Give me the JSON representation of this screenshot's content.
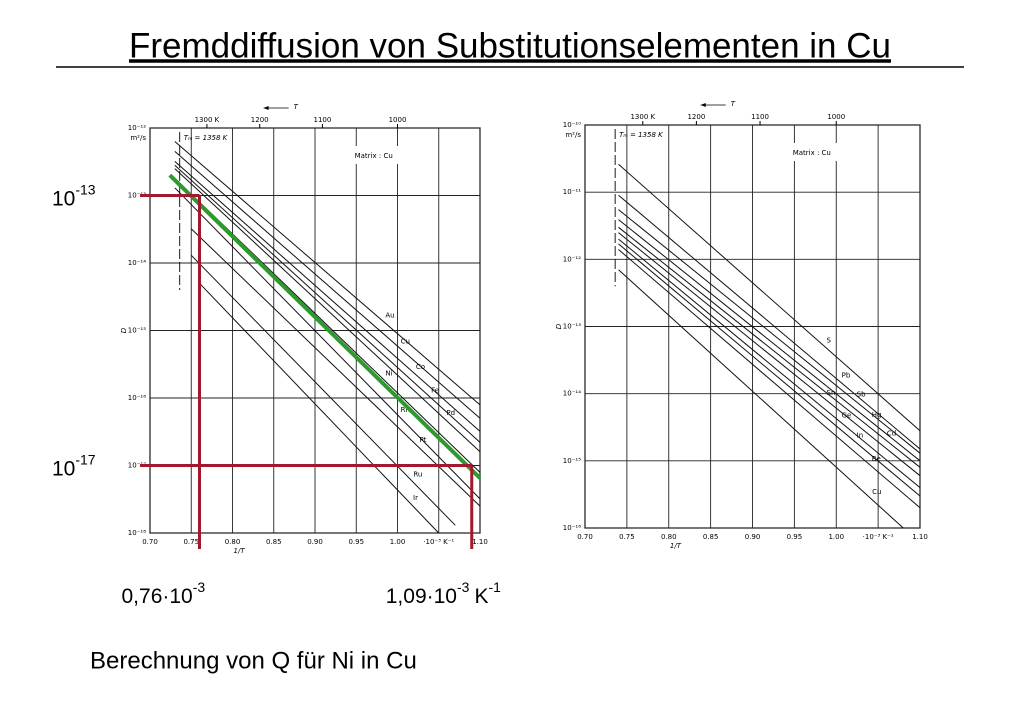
{
  "slide": {
    "title": "Fremddiffusion von Substitutionselementen in Cu",
    "caption": "Berechnung von Q für Ni in Cu"
  },
  "chart_data": [
    {
      "type": "line",
      "yscale": "log",
      "grid": true,
      "annotation": "Matrix : Cu",
      "xlabel": "1/T",
      "ylabel": "D",
      "yunit": "m²/s",
      "xlim": [
        0.7,
        1.1
      ],
      "xticks": [
        {
          "value": 0.7,
          "label": "0.70"
        },
        0.75,
        {
          "value": 0.8,
          "label": "0.80"
        },
        0.85,
        {
          "value": 0.9,
          "label": "0.90"
        },
        0.95,
        {
          "value": 1.0,
          "label": "1.00"
        },
        {
          "value": 1.05,
          "label": "·10⁻³ K⁻¹"
        },
        {
          "value": 1.1,
          "label": "1.10"
        }
      ],
      "ylim": [
        1e-18,
        1e-12
      ],
      "yticks": [
        {
          "value": 1e-12,
          "label": "10⁻¹²"
        },
        {
          "value": 1e-13,
          "label": "10⁻¹³"
        },
        {
          "value": 1e-14,
          "label": "10⁻¹⁴"
        },
        {
          "value": 1e-15,
          "label": "10⁻¹⁵"
        },
        {
          "value": 1e-16,
          "label": "10⁻¹⁶"
        },
        {
          "value": 1e-17,
          "label": "10⁻¹⁷"
        },
        {
          "value": 1e-18,
          "label": "10⁻¹⁸"
        }
      ],
      "top_axis": {
        "label": "T",
        "ticks": [
          {
            "value": 0.769,
            "label": "1300 K"
          },
          {
            "value": 0.833,
            "label": "1200"
          },
          {
            "value": 0.909,
            "label": "1100"
          },
          {
            "value": 1.0,
            "label": "1000"
          }
        ]
      },
      "tm": {
        "x": 0.736,
        "label": "Tₘ = 1358 K"
      },
      "series": [
        {
          "name": "Au",
          "color": "#111111",
          "x": [
            0.73,
            1.1
          ],
          "values": [
            6.3e-13,
            7.9e-17
          ]
        },
        {
          "name": "Cu",
          "color": "#111111",
          "x": [
            0.73,
            1.1
          ],
          "values": [
            4.5e-13,
            5e-17
          ]
        },
        {
          "name": "Co",
          "color": "#111111",
          "x": [
            0.73,
            1.1
          ],
          "values": [
            3.2e-13,
            3.2e-17
          ]
        },
        {
          "name": "Fe",
          "color": "#111111",
          "x": [
            0.73,
            1.1
          ],
          "values": [
            2.8e-13,
            2.2e-17
          ]
        },
        {
          "name": "Pd",
          "color": "#111111",
          "x": [
            0.73,
            1.1
          ],
          "values": [
            2.5e-13,
            1.6e-17
          ]
        },
        {
          "name": "Ni",
          "color": "#111111",
          "x": [
            0.73,
            1.1
          ],
          "values": [
            1.8e-13,
            7.9e-18
          ]
        },
        {
          "name": "Rh",
          "color": "#111111",
          "x": [
            0.73,
            1.1
          ],
          "values": [
            1.3e-13,
            3.2e-18
          ]
        },
        {
          "name": "Pt",
          "color": "#111111",
          "x": [
            0.75,
            1.1
          ],
          "values": [
            3.2e-14,
            2.5e-18
          ]
        },
        {
          "name": "Ru",
          "color": "#111111",
          "x": [
            0.75,
            1.07
          ],
          "values": [
            1.3e-14,
            1.3e-18
          ]
        },
        {
          "name": "Ir",
          "color": "#111111",
          "x": [
            0.76,
            1.05
          ],
          "values": [
            5e-15,
            1e-18
          ]
        }
      ],
      "fit_line": {
        "color": "#2e9a2e",
        "x": [
          0.724,
          1.1
        ],
        "values": [
          2e-13,
          6.5e-18
        ]
      },
      "marker_color": "#a3182f",
      "markers": [
        {
          "x": 0.76,
          "y": 1e-13,
          "y_label": {
            "text": "10",
            "exp": "-13"
          },
          "x_label": {
            "text": "0,76·10",
            "exp": "-3"
          }
        },
        {
          "x": 1.09,
          "y": 1e-17,
          "y_label": {
            "text": "10",
            "exp": "-17"
          },
          "x_label": {
            "text": "1,09·10",
            "exp": "-3",
            "unit": "K",
            "unit_exp": "-1"
          }
        }
      ]
    },
    {
      "type": "line",
      "yscale": "log",
      "grid": true,
      "annotation": "Matrix : Cu",
      "xlabel": "1/T",
      "ylabel": "D",
      "yunit": "m²/s",
      "xlim": [
        0.7,
        1.1
      ],
      "xticks": [
        {
          "value": 0.7,
          "label": "0.70"
        },
        0.75,
        {
          "value": 0.8,
          "label": "0.80"
        },
        0.85,
        {
          "value": 0.9,
          "label": "0.90"
        },
        0.95,
        {
          "value": 1.0,
          "label": "1.00"
        },
        {
          "value": 1.05,
          "label": "·10⁻³ K⁻¹"
        },
        {
          "value": 1.1,
          "label": "1.10"
        }
      ],
      "ylim": [
        1e-16,
        1e-10
      ],
      "yticks": [
        {
          "value": 1e-10,
          "label": "10⁻¹⁰"
        },
        {
          "value": 1e-11,
          "label": "10⁻¹¹"
        },
        {
          "value": 1e-12,
          "label": "10⁻¹²"
        },
        {
          "value": 1e-13,
          "label": "10⁻¹³"
        },
        {
          "value": 1e-14,
          "label": "10⁻¹⁴"
        },
        {
          "value": 1e-15,
          "label": "10⁻¹⁵"
        },
        {
          "value": 1e-16,
          "label": "10⁻¹⁶"
        }
      ],
      "top_axis": {
        "label": "T",
        "ticks": [
          {
            "value": 0.769,
            "label": "1300 K"
          },
          {
            "value": 0.833,
            "label": "1200"
          },
          {
            "value": 0.909,
            "label": "1100"
          },
          {
            "value": 1.0,
            "label": "1000"
          }
        ]
      },
      "tm": {
        "x": 0.736,
        "label": "Tₘ = 1358 K"
      },
      "series": [
        {
          "name": "S",
          "color": "#111111",
          "x": [
            0.74,
            1.1
          ],
          "values": [
            2.6e-11,
            2.8e-15
          ]
        },
        {
          "name": "Pb",
          "color": "#111111",
          "x": [
            0.74,
            1.1
          ],
          "values": [
            9e-12,
            1.5e-15
          ]
        },
        {
          "name": "Sb",
          "color": "#111111",
          "x": [
            0.74,
            1.1
          ],
          "values": [
            5.5e-12,
            1.3e-15
          ]
        },
        {
          "name": "Hg",
          "color": "#111111",
          "x": [
            0.74,
            1.1
          ],
          "values": [
            3.9e-12,
            1e-15
          ]
        },
        {
          "name": "Cd",
          "color": "#111111",
          "x": [
            0.74,
            1.1
          ],
          "values": [
            3e-12,
            8e-16
          ]
        },
        {
          "name": "Sn",
          "color": "#111111",
          "x": [
            0.74,
            1.1
          ],
          "values": [
            2.5e-12,
            6e-16
          ]
        },
        {
          "name": "Ge",
          "color": "#111111",
          "x": [
            0.74,
            1.1
          ],
          "values": [
            2e-12,
            4e-16
          ]
        },
        {
          "name": "In",
          "color": "#111111",
          "x": [
            0.74,
            1.1
          ],
          "values": [
            1.7e-12,
            3e-16
          ]
        },
        {
          "name": "Be",
          "color": "#111111",
          "x": [
            0.74,
            1.1
          ],
          "values": [
            1.4e-12,
            2e-16
          ]
        },
        {
          "name": "Cu",
          "color": "#111111",
          "x": [
            0.74,
            1.08
          ],
          "values": [
            7e-13,
            1e-16
          ]
        }
      ]
    }
  ]
}
